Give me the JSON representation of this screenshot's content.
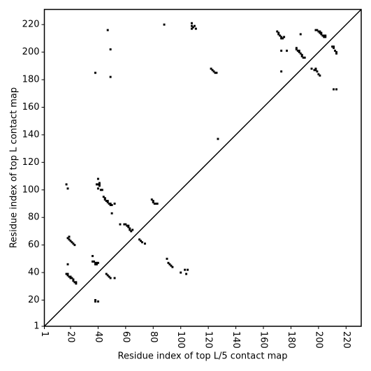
{
  "chart_data": {
    "type": "scatter",
    "x_label": "Residue index of top L/5 contact map",
    "y_label": "Residue index of top L contact map",
    "xlim": [
      1,
      231
    ],
    "ylim": [
      1,
      231
    ],
    "xticks": [
      1,
      20,
      40,
      60,
      80,
      100,
      120,
      140,
      160,
      180,
      200,
      220
    ],
    "yticks": [
      1,
      20,
      40,
      60,
      80,
      100,
      120,
      140,
      160,
      180,
      200,
      220
    ],
    "color": "#000000",
    "x": [
      17,
      18,
      18,
      19,
      20,
      21,
      22,
      23,
      19,
      17,
      18,
      18,
      19,
      20,
      20,
      21,
      22,
      22,
      23,
      24,
      24,
      18,
      36,
      36,
      37,
      38,
      39,
      40,
      38,
      39,
      38,
      38,
      40,
      39,
      40,
      41,
      41,
      41,
      40,
      40,
      42,
      43,
      44,
      45,
      45,
      46,
      47,
      47,
      48,
      49,
      49,
      50,
      52,
      50,
      46,
      47,
      48,
      49,
      52,
      56,
      59,
      60,
      61,
      62,
      62,
      63,
      63,
      64,
      65,
      70,
      71,
      72,
      74,
      79,
      80,
      80,
      81,
      82,
      83,
      90,
      91,
      92,
      93,
      94,
      100,
      103,
      104,
      105,
      38,
      47,
      49,
      49,
      88,
      108,
      108,
      108,
      109,
      110,
      111,
      122,
      123,
      124,
      125,
      126,
      127,
      170,
      171,
      171,
      172,
      173,
      173,
      174,
      175,
      173,
      177,
      173,
      184,
      184,
      185,
      186,
      186,
      187,
      188,
      188,
      189,
      190,
      187,
      195,
      198,
      198,
      197,
      199,
      200,
      201,
      198,
      199,
      200,
      201,
      201,
      202,
      202,
      203,
      204,
      205,
      205,
      204,
      210,
      211,
      211,
      212,
      213,
      213,
      211,
      213
    ],
    "y": [
      104,
      101,
      65,
      64,
      63,
      62,
      61,
      60,
      66,
      39,
      39,
      38,
      37,
      37,
      36,
      36,
      35,
      34,
      33,
      32,
      33,
      46,
      52,
      48,
      48,
      47,
      47,
      47,
      46,
      46,
      20,
      19,
      19,
      104,
      104,
      104,
      105,
      103,
      108,
      101,
      100,
      100,
      95,
      94,
      93,
      92,
      92,
      91,
      90,
      90,
      89,
      89,
      90,
      83,
      39,
      38,
      37,
      36,
      36,
      75,
      75,
      75,
      74,
      74,
      73,
      72,
      71,
      70,
      71,
      64,
      63,
      62,
      61,
      93,
      92,
      91,
      90,
      90,
      90,
      50,
      47,
      46,
      45,
      44,
      40,
      42,
      39,
      42,
      185,
      216,
      202,
      182,
      220,
      221,
      219,
      217,
      218,
      219,
      217,
      188,
      187,
      186,
      185,
      185,
      137,
      215,
      214,
      213,
      212,
      211,
      210,
      210,
      211,
      201,
      201,
      186,
      203,
      202,
      201,
      201,
      200,
      199,
      198,
      197,
      196,
      196,
      213,
      188,
      188,
      187,
      187,
      186,
      184,
      183,
      216,
      216,
      215,
      215,
      214,
      214,
      213,
      212,
      212,
      212,
      211,
      211,
      204,
      204,
      203,
      201,
      200,
      199,
      173,
      173
    ]
  }
}
